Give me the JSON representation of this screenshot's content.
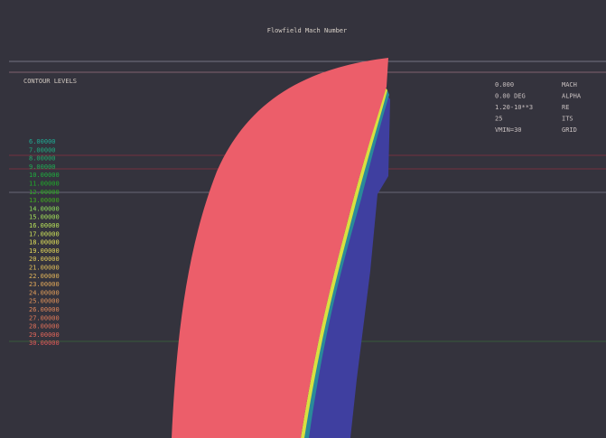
{
  "header": {
    "title": "Flowfield Mach Number"
  },
  "legend": {
    "title": "CONTOUR LEVELS",
    "levels": [
      "6.00000",
      "7.00000",
      "8.00000",
      "9.00000",
      "10.00000",
      "11.00000",
      "12.00000",
      "13.00000",
      "14.00000",
      "15.00000",
      "16.00000",
      "17.00000",
      "18.00000",
      "19.00000",
      "20.00000",
      "21.00000",
      "22.00000",
      "23.00000",
      "24.00000",
      "25.00000",
      "26.00000",
      "27.00000",
      "28.00000",
      "29.00000",
      "30.00000"
    ]
  },
  "info": {
    "rows": [
      [
        "0.000",
        "MACH"
      ],
      [
        "0.00 DEG",
        "ALPHA"
      ],
      [
        "1.20-10**3",
        "RE"
      ],
      [
        "25",
        "ITS"
      ],
      [
        "VMIN=30",
        "GRID"
      ]
    ]
  }
}
